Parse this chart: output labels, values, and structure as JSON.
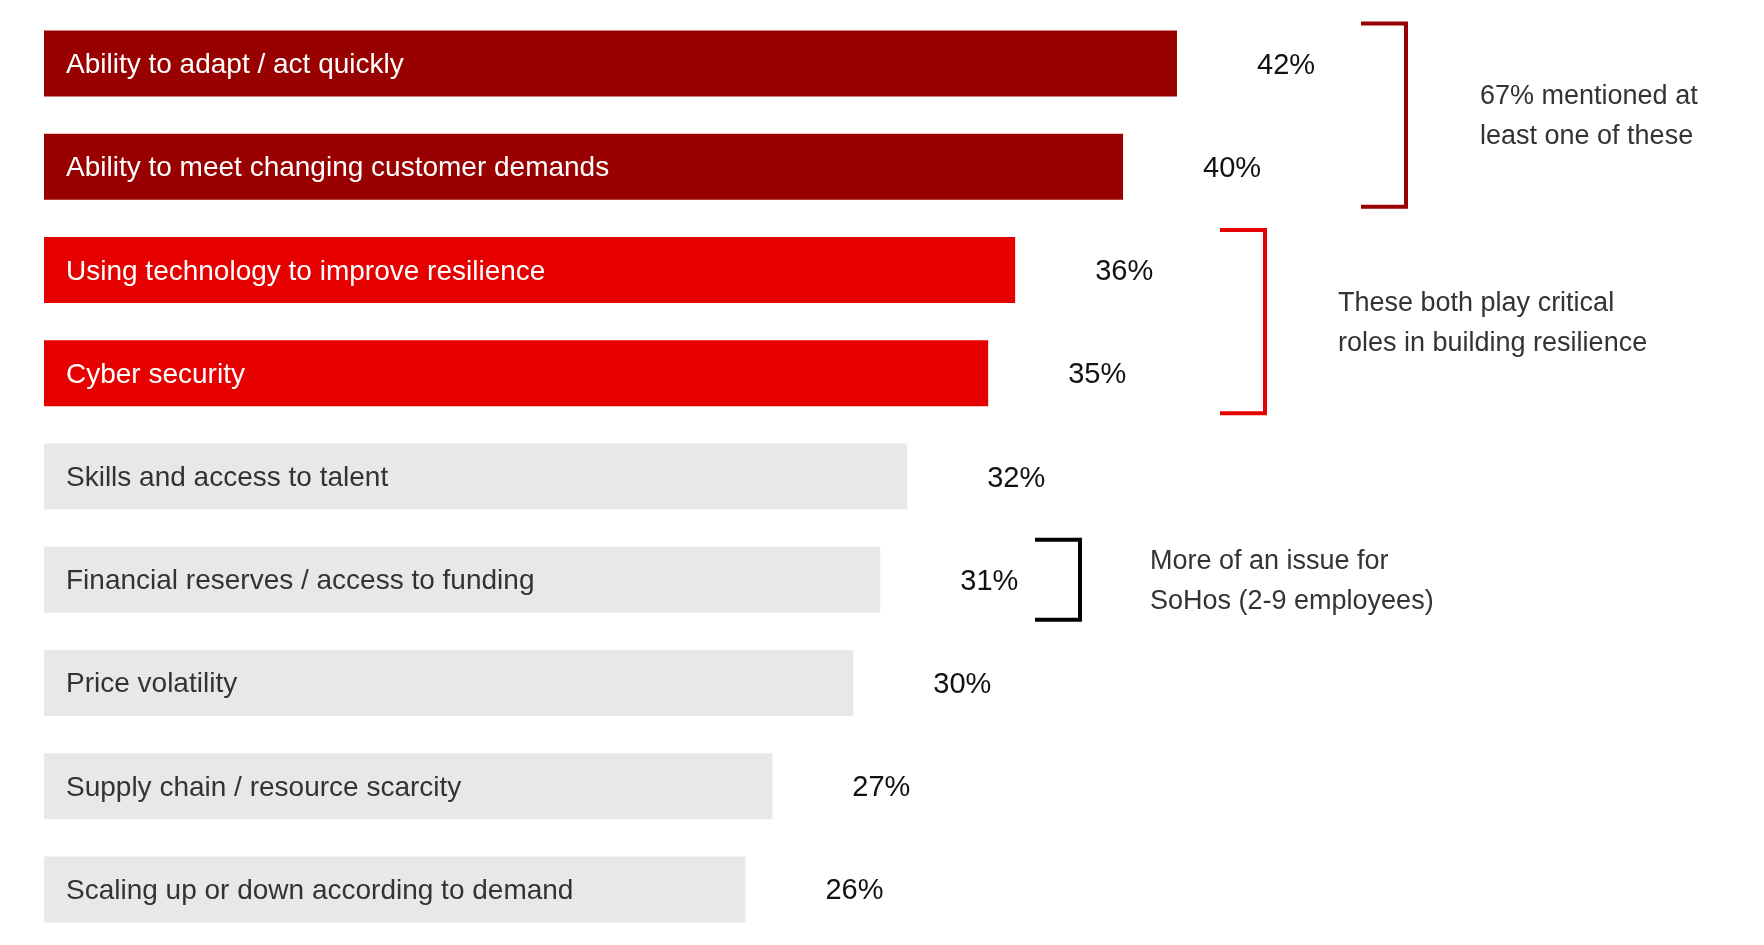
{
  "chart_data": {
    "type": "bar",
    "orientation": "horizontal",
    "value_labels": [
      "42%",
      "40%",
      "36%",
      "35%",
      "32%",
      "31%",
      "30%",
      "27%",
      "26%"
    ],
    "categories": [
      "Ability to adapt / act quickly",
      "Ability to meet changing customer demands",
      "Using technology to improve resilience",
      "Cyber security",
      "Skills and access to talent",
      "Financial reserves / access to funding",
      "Price volatility",
      "Supply chain / resource scarcity",
      "Scaling up or down according to demand"
    ],
    "values": [
      42,
      40,
      36,
      35,
      32,
      31,
      30,
      27,
      26
    ],
    "colors": [
      "#990000",
      "#990000",
      "#e60000",
      "#e60000",
      "#e8e8e8",
      "#e8e8e8",
      "#e8e8e8",
      "#e8e8e8",
      "#e8e8e8"
    ],
    "annotations": [
      "67% mentioned at least one of these",
      "These both play critical roles in building resilience",
      "More of an issue for SoHos (2-9 employees)"
    ]
  }
}
